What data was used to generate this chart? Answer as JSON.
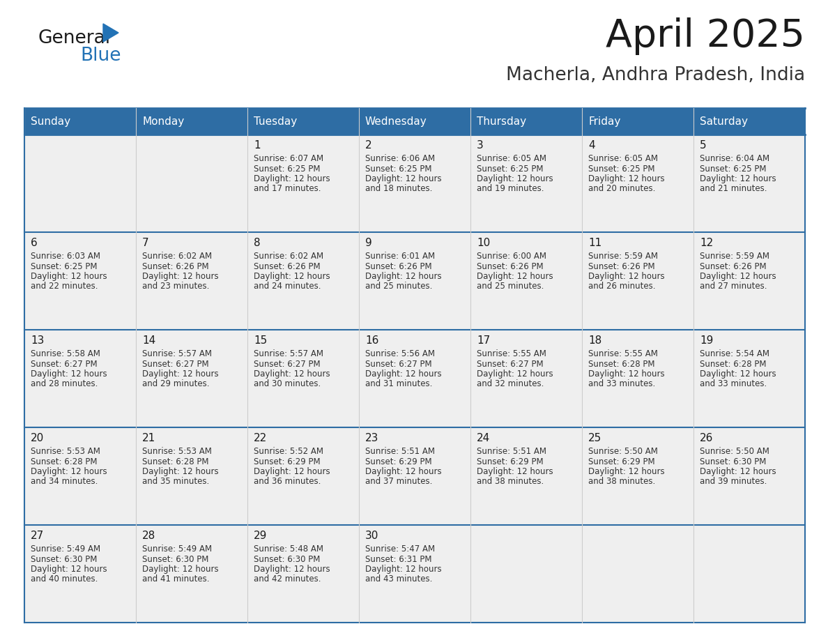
{
  "title": "April 2025",
  "subtitle": "Macherla, Andhra Pradesh, India",
  "header_bg": "#2E6DA4",
  "header_text_color": "#FFFFFF",
  "cell_bg": "#EFEFEF",
  "border_color": "#2E6DA4",
  "row_divider_color": "#2E6DA4",
  "day_names": [
    "Sunday",
    "Monday",
    "Tuesday",
    "Wednesday",
    "Thursday",
    "Friday",
    "Saturday"
  ],
  "title_color": "#1A1A1A",
  "subtitle_color": "#333333",
  "text_color": "#333333",
  "day_num_color": "#1A1A1A",
  "blue_color": "#2272B5",
  "days": [
    {
      "day": 1,
      "col": 2,
      "row": 0,
      "sunrise": "6:07 AM",
      "sunset": "6:25 PM",
      "daylight_min": "17"
    },
    {
      "day": 2,
      "col": 3,
      "row": 0,
      "sunrise": "6:06 AM",
      "sunset": "6:25 PM",
      "daylight_min": "18"
    },
    {
      "day": 3,
      "col": 4,
      "row": 0,
      "sunrise": "6:05 AM",
      "sunset": "6:25 PM",
      "daylight_min": "19"
    },
    {
      "day": 4,
      "col": 5,
      "row": 0,
      "sunrise": "6:05 AM",
      "sunset": "6:25 PM",
      "daylight_min": "20"
    },
    {
      "day": 5,
      "col": 6,
      "row": 0,
      "sunrise": "6:04 AM",
      "sunset": "6:25 PM",
      "daylight_min": "21"
    },
    {
      "day": 6,
      "col": 0,
      "row": 1,
      "sunrise": "6:03 AM",
      "sunset": "6:25 PM",
      "daylight_min": "22"
    },
    {
      "day": 7,
      "col": 1,
      "row": 1,
      "sunrise": "6:02 AM",
      "sunset": "6:26 PM",
      "daylight_min": "23"
    },
    {
      "day": 8,
      "col": 2,
      "row": 1,
      "sunrise": "6:02 AM",
      "sunset": "6:26 PM",
      "daylight_min": "24"
    },
    {
      "day": 9,
      "col": 3,
      "row": 1,
      "sunrise": "6:01 AM",
      "sunset": "6:26 PM",
      "daylight_min": "25"
    },
    {
      "day": 10,
      "col": 4,
      "row": 1,
      "sunrise": "6:00 AM",
      "sunset": "6:26 PM",
      "daylight_min": "25"
    },
    {
      "day": 11,
      "col": 5,
      "row": 1,
      "sunrise": "5:59 AM",
      "sunset": "6:26 PM",
      "daylight_min": "26"
    },
    {
      "day": 12,
      "col": 6,
      "row": 1,
      "sunrise": "5:59 AM",
      "sunset": "6:26 PM",
      "daylight_min": "27"
    },
    {
      "day": 13,
      "col": 0,
      "row": 2,
      "sunrise": "5:58 AM",
      "sunset": "6:27 PM",
      "daylight_min": "28"
    },
    {
      "day": 14,
      "col": 1,
      "row": 2,
      "sunrise": "5:57 AM",
      "sunset": "6:27 PM",
      "daylight_min": "29"
    },
    {
      "day": 15,
      "col": 2,
      "row": 2,
      "sunrise": "5:57 AM",
      "sunset": "6:27 PM",
      "daylight_min": "30"
    },
    {
      "day": 16,
      "col": 3,
      "row": 2,
      "sunrise": "5:56 AM",
      "sunset": "6:27 PM",
      "daylight_min": "31"
    },
    {
      "day": 17,
      "col": 4,
      "row": 2,
      "sunrise": "5:55 AM",
      "sunset": "6:27 PM",
      "daylight_min": "32"
    },
    {
      "day": 18,
      "col": 5,
      "row": 2,
      "sunrise": "5:55 AM",
      "sunset": "6:28 PM",
      "daylight_min": "33"
    },
    {
      "day": 19,
      "col": 6,
      "row": 2,
      "sunrise": "5:54 AM",
      "sunset": "6:28 PM",
      "daylight_min": "33"
    },
    {
      "day": 20,
      "col": 0,
      "row": 3,
      "sunrise": "5:53 AM",
      "sunset": "6:28 PM",
      "daylight_min": "34"
    },
    {
      "day": 21,
      "col": 1,
      "row": 3,
      "sunrise": "5:53 AM",
      "sunset": "6:28 PM",
      "daylight_min": "35"
    },
    {
      "day": 22,
      "col": 2,
      "row": 3,
      "sunrise": "5:52 AM",
      "sunset": "6:29 PM",
      "daylight_min": "36"
    },
    {
      "day": 23,
      "col": 3,
      "row": 3,
      "sunrise": "5:51 AM",
      "sunset": "6:29 PM",
      "daylight_min": "37"
    },
    {
      "day": 24,
      "col": 4,
      "row": 3,
      "sunrise": "5:51 AM",
      "sunset": "6:29 PM",
      "daylight_min": "38"
    },
    {
      "day": 25,
      "col": 5,
      "row": 3,
      "sunrise": "5:50 AM",
      "sunset": "6:29 PM",
      "daylight_min": "38"
    },
    {
      "day": 26,
      "col": 6,
      "row": 3,
      "sunrise": "5:50 AM",
      "sunset": "6:30 PM",
      "daylight_min": "39"
    },
    {
      "day": 27,
      "col": 0,
      "row": 4,
      "sunrise": "5:49 AM",
      "sunset": "6:30 PM",
      "daylight_min": "40"
    },
    {
      "day": 28,
      "col": 1,
      "row": 4,
      "sunrise": "5:49 AM",
      "sunset": "6:30 PM",
      "daylight_min": "41"
    },
    {
      "day": 29,
      "col": 2,
      "row": 4,
      "sunrise": "5:48 AM",
      "sunset": "6:30 PM",
      "daylight_min": "42"
    },
    {
      "day": 30,
      "col": 3,
      "row": 4,
      "sunrise": "5:47 AM",
      "sunset": "6:31 PM",
      "daylight_min": "43"
    }
  ]
}
